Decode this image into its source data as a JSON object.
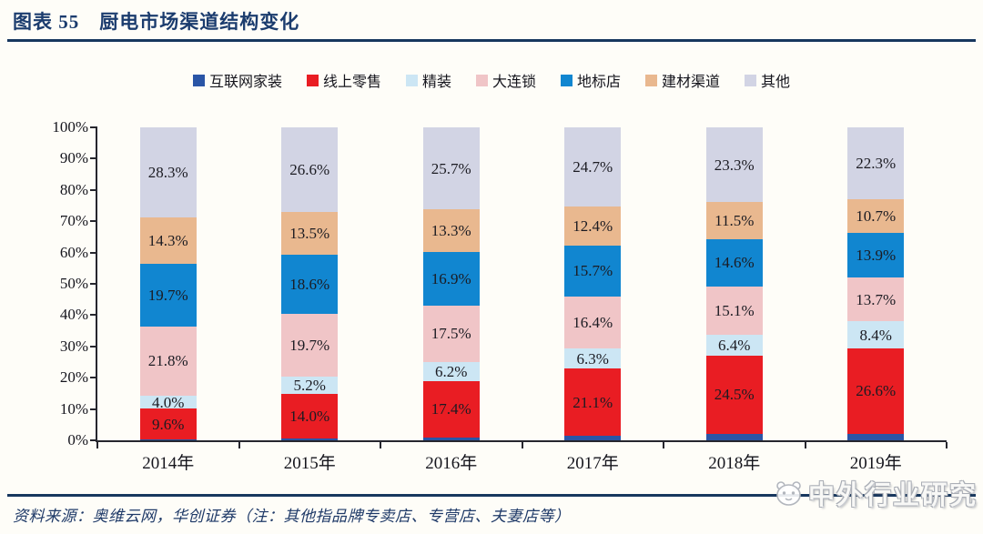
{
  "title": "图表 55　厨电市场渠道结构变化",
  "chart_data": {
    "type": "bar",
    "subtype": "stacked-percent-column",
    "title": "厨电市场渠道结构变化",
    "categories": [
      "2014年",
      "2015年",
      "2016年",
      "2017年",
      "2018年",
      "2019年"
    ],
    "series": [
      {
        "name": "互联网家装",
        "color": "#2a55a6",
        "values": [
          0.3,
          0.7,
          1.0,
          1.3,
          1.9,
          2.1
        ],
        "show_labels": false
      },
      {
        "name": "线上零售",
        "color": "#e91d23",
        "values": [
          9.6,
          14.0,
          17.4,
          21.1,
          24.5,
          26.6
        ],
        "show_labels": true
      },
      {
        "name": "精装",
        "color": "#cce6f4",
        "values": [
          4.0,
          5.2,
          6.2,
          6.3,
          6.4,
          8.4
        ],
        "show_labels": true
      },
      {
        "name": "大连锁",
        "color": "#f0c5c7",
        "values": [
          21.8,
          19.7,
          17.5,
          16.4,
          15.1,
          13.7
        ],
        "show_labels": true
      },
      {
        "name": "地标店",
        "color": "#1186d0",
        "values": [
          19.7,
          18.6,
          16.9,
          15.7,
          14.6,
          13.9
        ],
        "show_labels": true
      },
      {
        "name": "建材渠道",
        "color": "#e9b88f",
        "values": [
          14.3,
          13.5,
          13.3,
          12.4,
          11.5,
          10.7
        ],
        "show_labels": true
      },
      {
        "name": "其他",
        "color": "#d2d4e4",
        "values": [
          28.3,
          26.6,
          25.7,
          24.7,
          23.3,
          22.3
        ],
        "show_labels": true
      }
    ],
    "yticks": [
      "0%",
      "10%",
      "20%",
      "30%",
      "40%",
      "50%",
      "60%",
      "70%",
      "80%",
      "90%",
      "100%"
    ],
    "ylim": [
      0,
      100
    ],
    "grid": false,
    "legend_position": "top"
  },
  "footer": {
    "source_text": "资料来源：奥维云网，华创证券（注：其他指品牌专卖店、专营店、夫妻店等）"
  },
  "watermark": {
    "text": "中外行业研究"
  }
}
